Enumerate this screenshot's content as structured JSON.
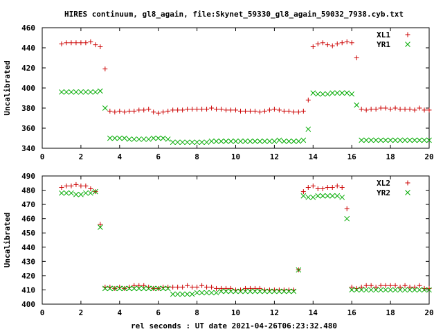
{
  "title": "HIRES continuum, gl8_again, file:Skynet_59330_gl8_again_59032_7938.cyb.txt",
  "xlabel": "rel seconds : UT date 2021-04-26T06:23:32.480",
  "colors": {
    "series1": "#cc0000",
    "series2": "#00aa00",
    "axis": "#000000",
    "background": "#ffffff"
  },
  "chart_data": [
    {
      "type": "scatter",
      "ylabel": "Uncalibrated",
      "xlim": [
        0,
        20
      ],
      "ylim": [
        340,
        460
      ],
      "xticks": [
        "0",
        "2",
        "4",
        "6",
        "8",
        "10",
        "12",
        "14",
        "16",
        "18",
        "20"
      ],
      "yticks": [
        "340",
        "360",
        "380",
        "400",
        "420",
        "440",
        "460"
      ],
      "grid": false,
      "legend_position": "top-right",
      "x": [
        1.0,
        1.25,
        1.5,
        1.75,
        2.0,
        2.25,
        2.5,
        2.75,
        3.0,
        3.25,
        3.5,
        3.75,
        4.0,
        4.25,
        4.5,
        4.75,
        5.0,
        5.25,
        5.5,
        5.75,
        6.0,
        6.25,
        6.5,
        6.75,
        7.0,
        7.25,
        7.5,
        7.75,
        8.0,
        8.25,
        8.5,
        8.75,
        9.0,
        9.25,
        9.5,
        9.75,
        10.0,
        10.25,
        10.5,
        10.75,
        11.0,
        11.25,
        11.5,
        11.75,
        12.0,
        12.25,
        12.5,
        12.75,
        13.0,
        13.25,
        13.5,
        13.75,
        14.0,
        14.25,
        14.5,
        14.75,
        15.0,
        15.25,
        15.5,
        15.75,
        16.0,
        16.25,
        16.5,
        16.75,
        17.0,
        17.25,
        17.5,
        17.75,
        18.0,
        18.25,
        18.5,
        18.75,
        19.0,
        19.25,
        19.5,
        19.75,
        20.0
      ],
      "series": [
        {
          "name": "XL1",
          "marker": "plus",
          "color": "#cc0000",
          "values": [
            444,
            445,
            445,
            445,
            445,
            445,
            446,
            443,
            441,
            419,
            377,
            376,
            377,
            376,
            377,
            377,
            378,
            378,
            379,
            376,
            375,
            376,
            377,
            378,
            378,
            378,
            379,
            379,
            379,
            379,
            379,
            380,
            379,
            379,
            378,
            378,
            378,
            377,
            377,
            377,
            377,
            376,
            377,
            378,
            379,
            378,
            377,
            377,
            376,
            376,
            377,
            388,
            441,
            444,
            445,
            443,
            442,
            444,
            445,
            446,
            445,
            430,
            379,
            378,
            379,
            379,
            380,
            380,
            379,
            380,
            379,
            379,
            379,
            378,
            380,
            378,
            378
          ]
        },
        {
          "name": "YR1",
          "marker": "cross",
          "color": "#00aa00",
          "values": [
            396,
            396,
            396,
            396,
            396,
            396,
            396,
            396,
            397,
            380,
            350,
            350,
            350,
            350,
            349,
            349,
            349,
            349,
            349,
            350,
            350,
            350,
            349,
            346,
            346,
            346,
            346,
            346,
            346,
            346,
            346,
            347,
            347,
            347,
            347,
            347,
            347,
            347,
            347,
            347,
            347,
            347,
            347,
            347,
            347,
            348,
            347,
            347,
            347,
            347,
            348,
            359,
            395,
            394,
            394,
            394,
            395,
            395,
            395,
            395,
            394,
            383,
            348,
            348,
            348,
            348,
            348,
            348,
            348,
            348,
            348,
            348,
            348,
            348,
            348,
            348,
            348
          ]
        }
      ]
    },
    {
      "type": "scatter",
      "ylabel": "Uncalibrated",
      "xlim": [
        0,
        20
      ],
      "ylim": [
        400,
        490
      ],
      "xticks": [
        "0",
        "2",
        "4",
        "6",
        "8",
        "10",
        "12",
        "14",
        "16",
        "18",
        "20"
      ],
      "yticks": [
        "400",
        "410",
        "420",
        "430",
        "440",
        "450",
        "460",
        "470",
        "480",
        "490"
      ],
      "grid": false,
      "legend_position": "top-right",
      "x": [
        1.0,
        1.25,
        1.5,
        1.75,
        2.0,
        2.25,
        2.5,
        2.75,
        3.0,
        3.25,
        3.5,
        3.75,
        4.0,
        4.25,
        4.5,
        4.75,
        5.0,
        5.25,
        5.5,
        5.75,
        6.0,
        6.25,
        6.5,
        6.75,
        7.0,
        7.25,
        7.5,
        7.75,
        8.0,
        8.25,
        8.5,
        8.75,
        9.0,
        9.25,
        9.5,
        9.75,
        10.0,
        10.25,
        10.5,
        10.75,
        11.0,
        11.25,
        11.5,
        11.75,
        12.0,
        12.25,
        12.5,
        12.75,
        13.0,
        13.25,
        13.5,
        13.75,
        14.0,
        14.25,
        14.5,
        14.75,
        15.0,
        15.25,
        15.5,
        15.75,
        16.0,
        16.25,
        16.5,
        16.75,
        17.0,
        17.25,
        17.5,
        17.75,
        18.0,
        18.25,
        18.5,
        18.75,
        19.0,
        19.25,
        19.5,
        19.75,
        20.0
      ],
      "series": [
        {
          "name": "XL2",
          "marker": "plus",
          "color": "#cc0000",
          "values": [
            482,
            483,
            483,
            484,
            483,
            483,
            481,
            479,
            456,
            412,
            412,
            411,
            412,
            411,
            412,
            413,
            413,
            413,
            412,
            411,
            411,
            412,
            412,
            412,
            412,
            412,
            413,
            412,
            412,
            413,
            412,
            412,
            411,
            411,
            411,
            411,
            410,
            410,
            411,
            411,
            411,
            411,
            410,
            410,
            410,
            410,
            410,
            410,
            410,
            424,
            479,
            482,
            483,
            481,
            481,
            482,
            482,
            483,
            482,
            467,
            412,
            411,
            412,
            413,
            413,
            412,
            413,
            413,
            413,
            413,
            412,
            413,
            412,
            412,
            413,
            411,
            411
          ]
        },
        {
          "name": "YR2",
          "marker": "cross",
          "color": "#00aa00",
          "values": [
            478,
            478,
            478,
            477,
            477,
            478,
            478,
            479,
            454,
            411,
            411,
            411,
            411,
            411,
            411,
            411,
            411,
            411,
            411,
            411,
            411,
            411,
            411,
            407,
            407,
            407,
            407,
            407,
            408,
            408,
            408,
            408,
            408,
            409,
            409,
            409,
            409,
            409,
            409,
            409,
            409,
            409,
            409,
            409,
            409,
            409,
            409,
            409,
            409,
            424,
            476,
            475,
            475,
            476,
            476,
            476,
            476,
            476,
            475,
            460,
            410,
            410,
            410,
            410,
            410,
            410,
            410,
            410,
            410,
            410,
            410,
            410,
            410,
            410,
            410,
            410,
            410
          ]
        }
      ]
    }
  ]
}
